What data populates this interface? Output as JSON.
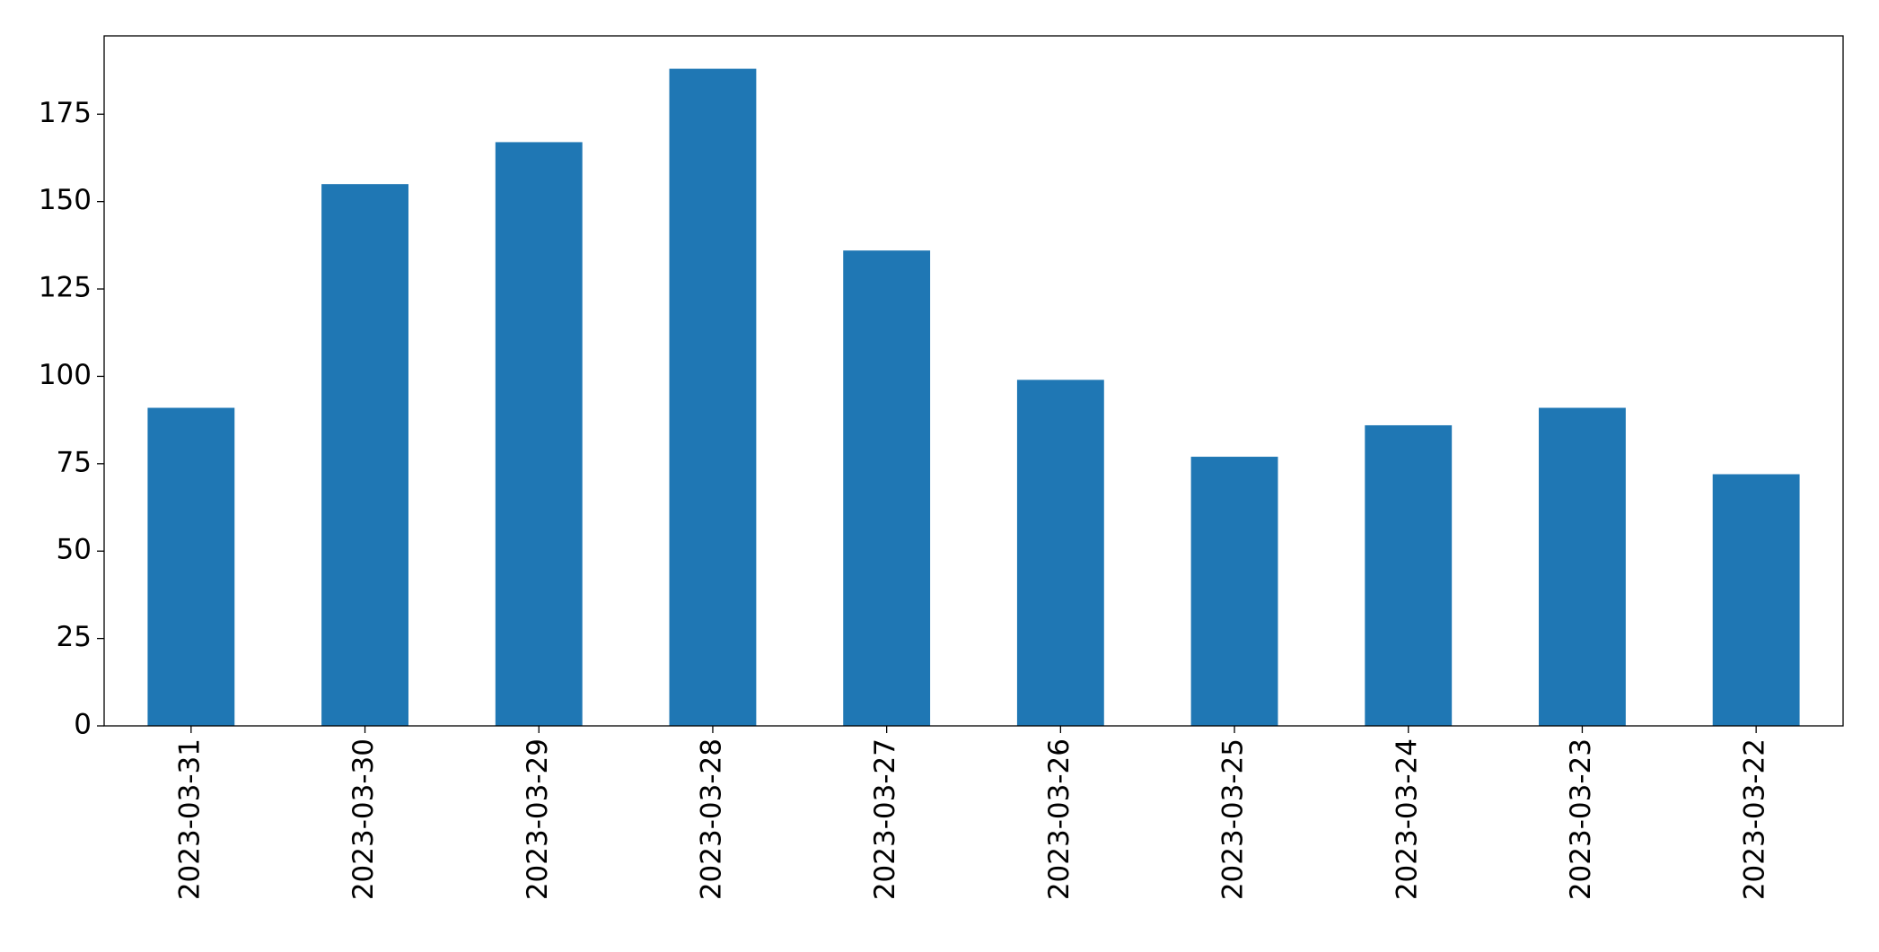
{
  "chart_data": {
    "type": "bar",
    "categories": [
      "2023-03-31",
      "2023-03-30",
      "2023-03-29",
      "2023-03-28",
      "2023-03-27",
      "2023-03-26",
      "2023-03-25",
      "2023-03-24",
      "2023-03-23",
      "2023-03-22"
    ],
    "values": [
      91,
      155,
      167,
      188,
      136,
      99,
      77,
      86,
      91,
      72
    ],
    "color": "#1f77b4",
    "ylim": [
      0,
      197.4
    ],
    "yticks": [
      0,
      25,
      50,
      75,
      100,
      125,
      150,
      175
    ],
    "grid": false
  }
}
